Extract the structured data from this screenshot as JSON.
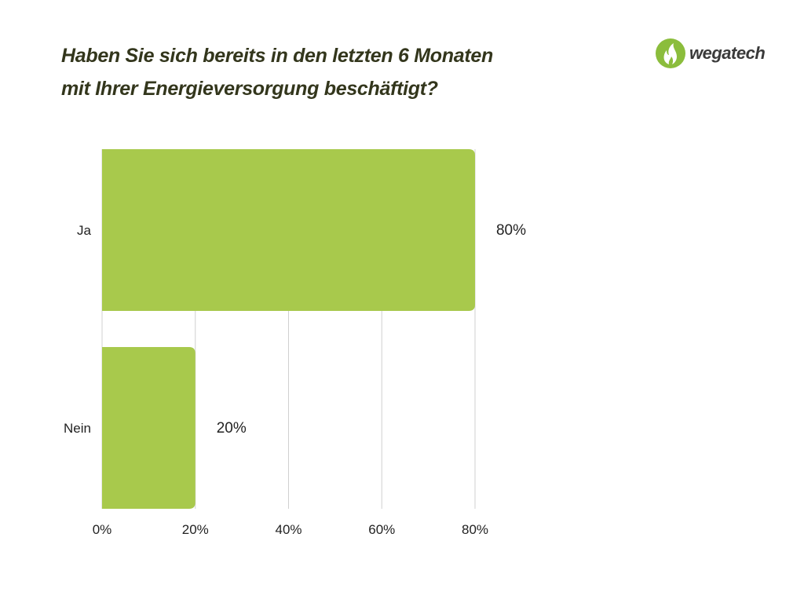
{
  "brand": {
    "name": "wegatech",
    "logo_color": "#8bbd3c"
  },
  "colors": {
    "bar": "#a8c94c",
    "grid": "#d0d0d0",
    "text": "#222222",
    "title": "#33361c"
  },
  "chart_data": {
    "type": "bar",
    "orientation": "horizontal",
    "title_lines": [
      "Haben Sie sich bereits in den letzten 6 Monaten",
      "mit Ihrer Energieversorgung beschäftigt?"
    ],
    "categories": [
      "Ja",
      "Nein"
    ],
    "values": [
      80,
      20
    ],
    "data_labels": [
      "80%",
      "20%"
    ],
    "xlim": [
      0,
      80
    ],
    "xticks": [
      0,
      20,
      40,
      60,
      80
    ],
    "xtick_labels": [
      "0%",
      "20%",
      "40%",
      "60%",
      "80%"
    ],
    "grid": true,
    "xlabel": "",
    "ylabel": ""
  }
}
